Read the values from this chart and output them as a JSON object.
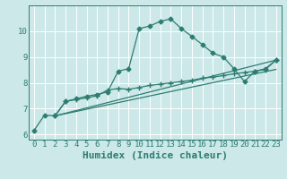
{
  "bg_color": "#cce8e8",
  "grid_color": "#ffffff",
  "line_color": "#2d7d72",
  "xlabel": "Humidex (Indice chaleur)",
  "xlim": [
    -0.5,
    23.5
  ],
  "ylim": [
    5.8,
    11.0
  ],
  "yticks": [
    6,
    7,
    8,
    9,
    10
  ],
  "xticks": [
    0,
    1,
    2,
    3,
    4,
    5,
    6,
    7,
    8,
    9,
    10,
    11,
    12,
    13,
    14,
    15,
    16,
    17,
    18,
    19,
    20,
    21,
    22,
    23
  ],
  "series1_x": [
    0,
    1,
    2,
    3,
    4,
    5,
    6,
    7,
    8,
    9,
    10,
    11,
    12,
    13,
    14,
    15,
    16,
    17,
    18,
    19,
    20,
    21,
    22,
    23
  ],
  "series1_y": [
    6.15,
    6.75,
    6.72,
    7.28,
    7.38,
    7.48,
    7.55,
    7.65,
    8.45,
    8.55,
    10.1,
    10.2,
    10.38,
    10.48,
    10.1,
    9.8,
    9.48,
    9.15,
    9.0,
    8.55,
    8.05,
    8.45,
    8.55,
    8.88
  ],
  "series2_x": [
    2,
    3,
    4,
    5,
    6,
    7,
    8,
    9,
    10,
    11,
    12,
    13,
    14,
    15,
    16,
    17,
    18,
    19,
    20,
    21,
    22,
    23
  ],
  "series2_y": [
    6.72,
    7.28,
    7.35,
    7.42,
    7.5,
    7.72,
    7.78,
    7.75,
    7.82,
    7.9,
    7.95,
    8.0,
    8.05,
    8.1,
    8.18,
    8.22,
    8.28,
    8.35,
    8.4,
    8.45,
    8.52,
    8.88
  ],
  "series3_x": [
    2,
    23
  ],
  "series3_y": [
    6.72,
    8.52
  ],
  "series4_x": [
    2,
    23
  ],
  "series4_y": [
    6.72,
    8.88
  ],
  "marker_size": 2.5,
  "linewidth": 0.9,
  "xlabel_fontsize": 8,
  "tick_fontsize": 6.5
}
